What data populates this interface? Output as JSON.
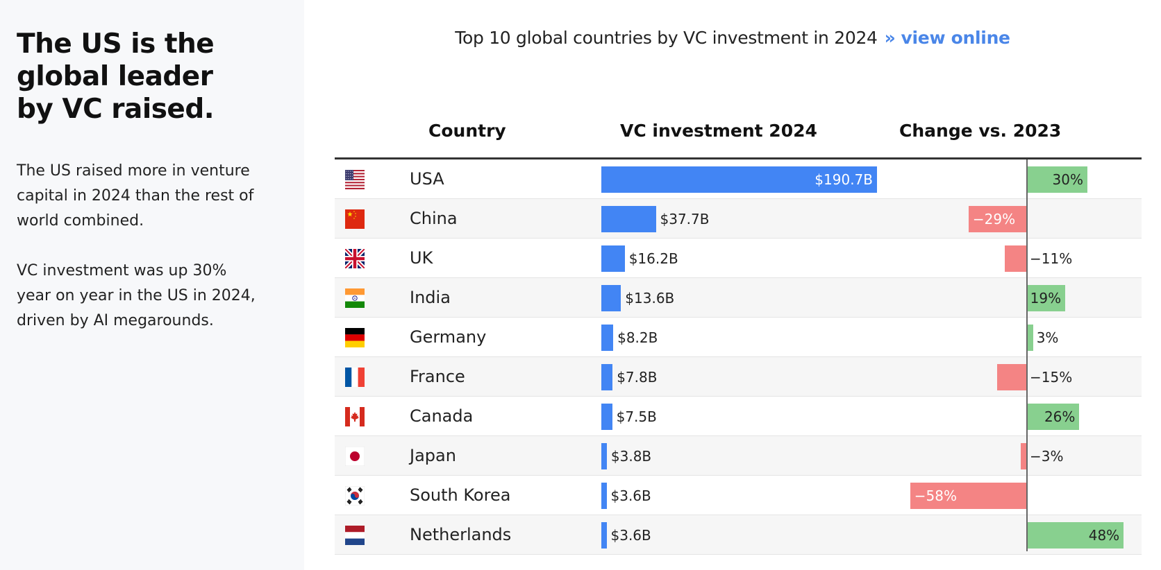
{
  "sidebar": {
    "headline": "The US is the global leader by VC raised.",
    "paragraph1": "The US raised more in venture capital in 2024 than the rest of world combined.",
    "paragraph2": "VC investment was up 30% year on year in the US in 2024, driven by AI megarounds."
  },
  "chart_title": {
    "text": "Top 10 global countries by VC investment in 2024",
    "separator": "»",
    "link_label": "view online"
  },
  "colors": {
    "investment_bar": "#4285f4",
    "positive_change": "#88d08f",
    "negative_change": "#f48484",
    "link": "#4a86e8"
  },
  "chart_data": {
    "type": "table",
    "columns": [
      "Country",
      "VC investment 2024",
      "Change vs. 2023"
    ],
    "rows": [
      {
        "country": "USA",
        "flag": "us-flag-icon",
        "investment": 190.7,
        "investment_label": "$190.7B",
        "change": 30,
        "change_label": "30%"
      },
      {
        "country": "China",
        "flag": "china-flag-icon",
        "investment": 37.7,
        "investment_label": "$37.7B",
        "change": -29,
        "change_label": "−29%"
      },
      {
        "country": "UK",
        "flag": "uk-flag-icon",
        "investment": 16.2,
        "investment_label": "$16.2B",
        "change": -11,
        "change_label": "−11%"
      },
      {
        "country": "India",
        "flag": "india-flag-icon",
        "investment": 13.6,
        "investment_label": "$13.6B",
        "change": 19,
        "change_label": "19%"
      },
      {
        "country": "Germany",
        "flag": "germany-flag-icon",
        "investment": 8.2,
        "investment_label": "$8.2B",
        "change": 3,
        "change_label": "3%"
      },
      {
        "country": "France",
        "flag": "france-flag-icon",
        "investment": 7.8,
        "investment_label": "$7.8B",
        "change": -15,
        "change_label": "−15%"
      },
      {
        "country": "Canada",
        "flag": "canada-flag-icon",
        "investment": 7.5,
        "investment_label": "$7.5B",
        "change": 26,
        "change_label": "26%"
      },
      {
        "country": "Japan",
        "flag": "japan-flag-icon",
        "investment": 3.8,
        "investment_label": "$3.8B",
        "change": -3,
        "change_label": "−3%"
      },
      {
        "country": "South Korea",
        "flag": "south-korea-flag-icon",
        "investment": 3.6,
        "investment_label": "$3.6B",
        "change": -58,
        "change_label": "−58%"
      },
      {
        "country": "Netherlands",
        "flag": "netherlands-flag-icon",
        "investment": 3.6,
        "investment_label": "$3.6B",
        "change": 48,
        "change_label": "48%"
      }
    ]
  }
}
